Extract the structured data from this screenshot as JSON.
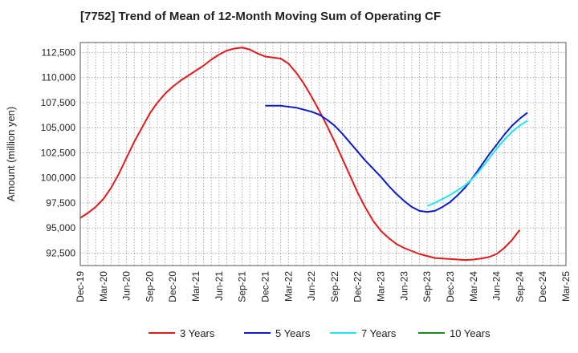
{
  "chart_data": {
    "type": "line",
    "title": "[7752]  Trend of Mean of 12-Month Moving Sum of Operating CF",
    "xlabel": "",
    "ylabel": "Amount (million yen)",
    "ylim": [
      91250,
      113500
    ],
    "y_ticks": [
      92500,
      95000,
      97500,
      100000,
      102500,
      105000,
      107500,
      110000,
      112500
    ],
    "y_tick_labels": [
      "92,500",
      "95,000",
      "97,500",
      "100,000",
      "102,500",
      "105,000",
      "107,500",
      "110,000",
      "112,500"
    ],
    "x_ticks": [
      "Dec-19",
      "Mar-20",
      "Jun-20",
      "Sep-20",
      "Dec-20",
      "Mar-21",
      "Jun-21",
      "Sep-21",
      "Dec-21",
      "Mar-22",
      "Jun-22",
      "Sep-22",
      "Dec-22",
      "Mar-23",
      "Jun-23",
      "Sep-23",
      "Dec-23",
      "Mar-24",
      "Jun-24",
      "Sep-24",
      "Dec-24",
      "Mar-25"
    ],
    "x_unit": "months since Dec-19",
    "grid": true,
    "legend_position": "bottom",
    "series": [
      {
        "name": "3 Years",
        "color": "#e31a1c",
        "points": [
          [
            0,
            96000
          ],
          [
            1,
            96500
          ],
          [
            2,
            97100
          ],
          [
            3,
            97900
          ],
          [
            4,
            99000
          ],
          [
            5,
            100400
          ],
          [
            6,
            102000
          ],
          [
            7,
            103600
          ],
          [
            8,
            105000
          ],
          [
            9,
            106400
          ],
          [
            10,
            107500
          ],
          [
            11,
            108400
          ],
          [
            12,
            109100
          ],
          [
            13,
            109700
          ],
          [
            14,
            110200
          ],
          [
            15,
            110700
          ],
          [
            16,
            111200
          ],
          [
            17,
            111800
          ],
          [
            18,
            112300
          ],
          [
            19,
            112700
          ],
          [
            20,
            112900
          ],
          [
            21,
            113000
          ],
          [
            22,
            112800
          ],
          [
            23,
            112400
          ],
          [
            24,
            112100
          ],
          [
            25,
            112000
          ],
          [
            26,
            111900
          ],
          [
            27,
            111400
          ],
          [
            28,
            110500
          ],
          [
            29,
            109400
          ],
          [
            30,
            108100
          ],
          [
            31,
            106700
          ],
          [
            32,
            105200
          ],
          [
            33,
            103600
          ],
          [
            34,
            101900
          ],
          [
            35,
            100200
          ],
          [
            36,
            98500
          ],
          [
            37,
            97000
          ],
          [
            38,
            95700
          ],
          [
            39,
            94700
          ],
          [
            40,
            94000
          ],
          [
            41,
            93400
          ],
          [
            42,
            93000
          ],
          [
            43,
            92700
          ],
          [
            44,
            92400
          ],
          [
            45,
            92200
          ],
          [
            46,
            92000
          ],
          [
            47,
            91950
          ],
          [
            48,
            91900
          ],
          [
            49,
            91850
          ],
          [
            50,
            91800
          ],
          [
            51,
            91850
          ],
          [
            52,
            91950
          ],
          [
            53,
            92100
          ],
          [
            54,
            92400
          ],
          [
            55,
            93000
          ],
          [
            56,
            93800
          ],
          [
            57,
            94800
          ]
        ]
      },
      {
        "name": "5 Years",
        "color": "#0a1ec8",
        "points": [
          [
            24,
            107200
          ],
          [
            25,
            107200
          ],
          [
            26,
            107200
          ],
          [
            27,
            107100
          ],
          [
            28,
            107000
          ],
          [
            29,
            106800
          ],
          [
            30,
            106600
          ],
          [
            31,
            106300
          ],
          [
            32,
            105800
          ],
          [
            33,
            105200
          ],
          [
            34,
            104400
          ],
          [
            35,
            103500
          ],
          [
            36,
            102600
          ],
          [
            37,
            101700
          ],
          [
            38,
            100900
          ],
          [
            39,
            100100
          ],
          [
            40,
            99200
          ],
          [
            41,
            98400
          ],
          [
            42,
            97700
          ],
          [
            43,
            97100
          ],
          [
            44,
            96700
          ],
          [
            45,
            96600
          ],
          [
            46,
            96700
          ],
          [
            47,
            97100
          ],
          [
            48,
            97600
          ],
          [
            49,
            98300
          ],
          [
            50,
            99100
          ],
          [
            51,
            100100
          ],
          [
            52,
            101200
          ],
          [
            53,
            102300
          ],
          [
            54,
            103300
          ],
          [
            55,
            104300
          ],
          [
            56,
            105200
          ],
          [
            57,
            105900
          ],
          [
            58,
            106500
          ]
        ]
      },
      {
        "name": "7 Years",
        "color": "#22e6ee",
        "points": [
          [
            45,
            97200
          ],
          [
            46,
            97500
          ],
          [
            47,
            97900
          ],
          [
            48,
            98300
          ],
          [
            49,
            98800
          ],
          [
            50,
            99300
          ],
          [
            51,
            100000
          ],
          [
            52,
            100900
          ],
          [
            53,
            101900
          ],
          [
            54,
            102900
          ],
          [
            55,
            103800
          ],
          [
            56,
            104600
          ],
          [
            57,
            105200
          ],
          [
            58,
            105700
          ]
        ]
      },
      {
        "name": "10 Years",
        "color": "#1a8a1a",
        "points": []
      }
    ]
  }
}
